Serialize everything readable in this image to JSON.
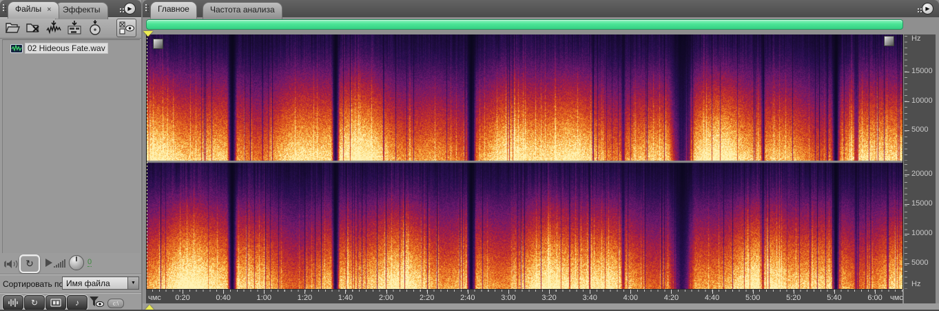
{
  "files_panel": {
    "tab_files": "Файлы",
    "tab_files_close": "×",
    "tab_effects": "Эффекты",
    "file_name": "02 Hideous Fate.wav",
    "preview_volume": "0",
    "sort_label": "Сортировать по:",
    "sort_value": "Имя файла",
    "path_badge": "c:\\"
  },
  "main_panel": {
    "tab_main": "Главное",
    "tab_freq": "Частота анализа",
    "freq_unit_top": "Hz",
    "freq_unit_bottom": "Hz",
    "freq_labels_top": [
      "15000",
      "10000",
      "5000"
    ],
    "freq_labels_bottom": [
      "20000",
      "15000",
      "10000",
      "5000"
    ],
    "timeline_format_left": "чмс",
    "timeline_format_right": "чмс",
    "timeline_ticks": [
      "0:20",
      "0:40",
      "1:00",
      "1:20",
      "1:40",
      "2:00",
      "2:20",
      "2:40",
      "3:00",
      "3:20",
      "3:40",
      "4:00",
      "4:20",
      "4:40",
      "5:00",
      "5:20",
      "5:40",
      "6:00"
    ]
  },
  "spectrogram": {
    "duration_s": 373,
    "channels": 2,
    "gaps": [
      {
        "t": 42,
        "w": 2.5,
        "depth": 0.1
      },
      {
        "t": 93,
        "w": 2.2,
        "depth": 0.12
      },
      {
        "t": 160,
        "w": 2.5,
        "depth": 0.1
      },
      {
        "t": 235,
        "w": 1.2,
        "depth": 0.45
      },
      {
        "t": 264,
        "w": 6.5,
        "depth": 0.22
      },
      {
        "t": 304,
        "w": 1.2,
        "depth": 0.45
      },
      {
        "t": 340,
        "w": 2.2,
        "depth": 0.12
      },
      {
        "t": 350,
        "w": 1.0,
        "depth": 0.5
      }
    ],
    "palette": [
      [
        0.0,
        8,
        6,
        25
      ],
      [
        0.15,
        40,
        15,
        80
      ],
      [
        0.3,
        110,
        25,
        110
      ],
      [
        0.45,
        175,
        30,
        60
      ],
      [
        0.6,
        215,
        75,
        25
      ],
      [
        0.75,
        245,
        145,
        45
      ],
      [
        0.87,
        252,
        205,
        95
      ],
      [
        1.0,
        255,
        242,
        180
      ]
    ]
  },
  "colors": {
    "nav_bar_green": "#45e291",
    "panel_bg": "#9c9c9c",
    "tabbar_bg": "#545454",
    "ruler_bg": "#4e4e4e",
    "playhead_yellow": "#ecec54",
    "volume_value_green": "#3e8a3e"
  }
}
